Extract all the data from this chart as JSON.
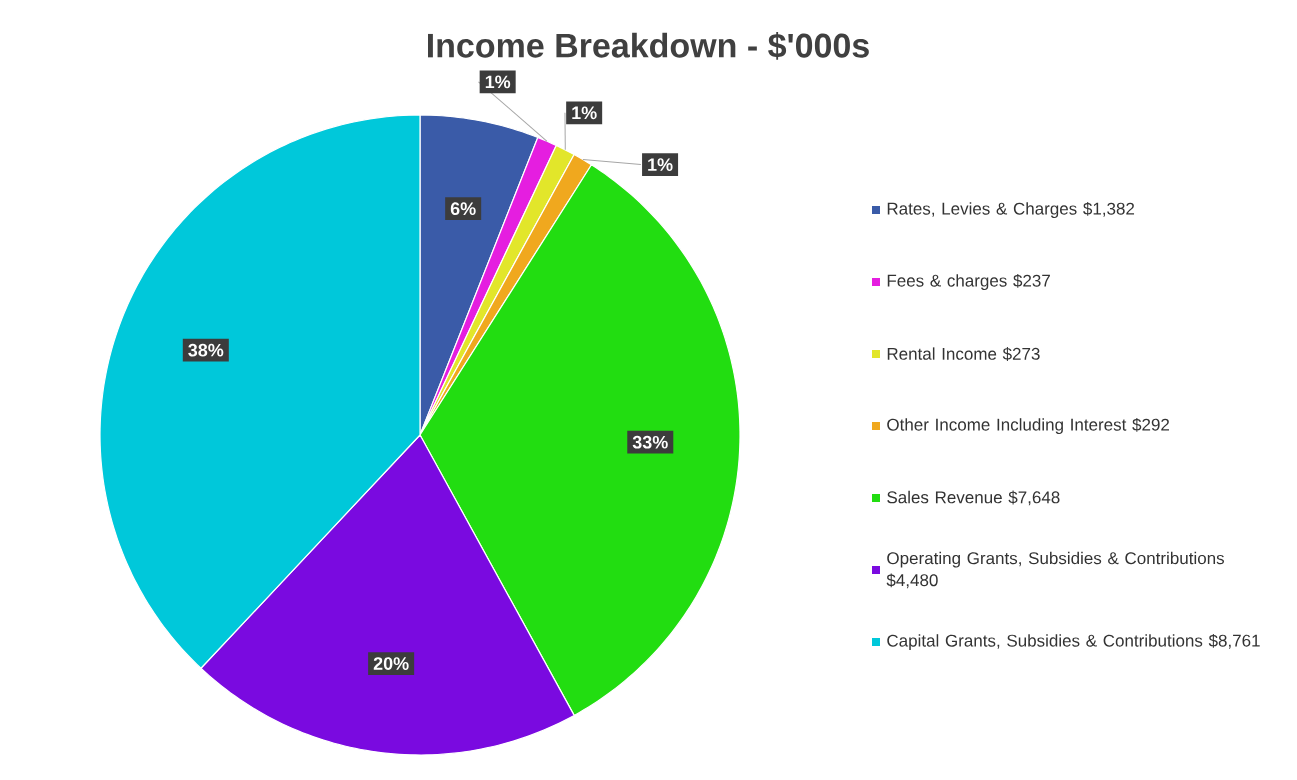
{
  "chart_data": {
    "type": "pie",
    "title": "Income Breakdown - $'000s",
    "categories": [
      "Rates, Levies & Charges $1,382",
      "Fees & charges $237",
      "Rental Income $273",
      "Other Income Including Interest $292",
      "Sales Revenue $7,648",
      "Operating Grants, Subsidies & Contributions $4,480",
      "Capital Grants, Subsidies & Contributions $8,761"
    ],
    "values": [
      6,
      1,
      1,
      1,
      33,
      20,
      38
    ],
    "value_labels": [
      "6%",
      "1%",
      "1%",
      "1%",
      "33%",
      "20%",
      "38%"
    ],
    "colors": [
      "#3a5ba8",
      "#e51ee0",
      "#e2e62a",
      "#f0a81e",
      "#22dd11",
      "#7a0ae0",
      "#00c8da"
    ],
    "legend": "right"
  }
}
